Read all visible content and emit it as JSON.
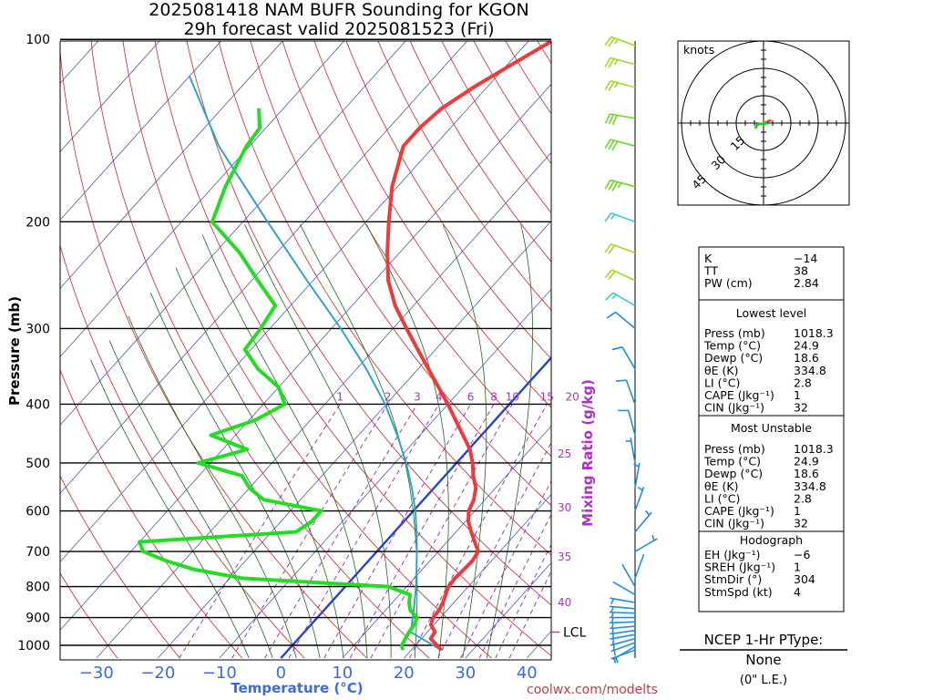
{
  "header": {
    "line1": "2025081418 NAM BUFR Sounding for KGON",
    "line2": "29h forecast valid 2025081523 (Fri)"
  },
  "axes": {
    "ylabel": "Pressure (mb)",
    "xlabel": "Temperature (°C)",
    "mixing_ratio_label": "Mixing Ratio (g/kg)",
    "pressure_ticks": [
      "100",
      "200",
      "300",
      "400",
      "500",
      "600",
      "700",
      "800",
      "900",
      "1000"
    ],
    "temp_ticks": [
      "−30",
      "−20",
      "−10",
      "0",
      "10",
      "20",
      "30",
      "40"
    ],
    "mixing_ratio_top": [
      "1",
      "2",
      "3",
      "4",
      "6",
      "8",
      "10",
      "15",
      "20"
    ],
    "mixing_ratio_side": [
      "25",
      "30",
      "35",
      "40"
    ],
    "lcl_label": "LCL"
  },
  "colors": {
    "temperature": "#f03a3a",
    "dewpoint": "#22dd22",
    "parcel": "#2aa6c8",
    "isotherm": "#2a36c8",
    "dry_adiabat": "#e02020",
    "moist_adiabat": "#1a6a1a",
    "mixing_ratio": "#a020c0",
    "freezing_isotherm": "#2244dd"
  },
  "chart_data": {
    "type": "skew-t",
    "title": "2025081418 NAM BUFR Sounding for KGON",
    "subtitle": "29h forecast valid 2025081523 (Fri)",
    "xlabel": "Temperature (°C)",
    "ylabel": "Pressure (mb)",
    "xlim": [
      -40,
      42
    ],
    "ylim": [
      1050,
      100
    ],
    "temperature": [
      {
        "p": 1018,
        "t": 24.9
      },
      {
        "p": 1000,
        "t": 23.5
      },
      {
        "p": 975,
        "t": 21.5
      },
      {
        "p": 950,
        "t": 21.2
      },
      {
        "p": 925,
        "t": 19.5
      },
      {
        "p": 900,
        "t": 18.8
      },
      {
        "p": 875,
        "t": 18.7
      },
      {
        "p": 850,
        "t": 18.2
      },
      {
        "p": 825,
        "t": 17.5
      },
      {
        "p": 800,
        "t": 16.8
      },
      {
        "p": 775,
        "t": 16.6
      },
      {
        "p": 750,
        "t": 16.8
      },
      {
        "p": 725,
        "t": 16.9
      },
      {
        "p": 700,
        "t": 16.5
      },
      {
        "p": 675,
        "t": 14.5
      },
      {
        "p": 650,
        "t": 12.5
      },
      {
        "p": 625,
        "t": 10.5
      },
      {
        "p": 600,
        "t": 9.0
      },
      {
        "p": 575,
        "t": 8.2
      },
      {
        "p": 550,
        "t": 6.8
      },
      {
        "p": 525,
        "t": 4.6
      },
      {
        "p": 500,
        "t": 2.6
      },
      {
        "p": 475,
        "t": 0.2
      },
      {
        "p": 450,
        "t": -3.0
      },
      {
        "p": 425,
        "t": -6.4
      },
      {
        "p": 400,
        "t": -10.0
      },
      {
        "p": 375,
        "t": -14.0
      },
      {
        "p": 350,
        "t": -18.3
      },
      {
        "p": 325,
        "t": -22.9
      },
      {
        "p": 300,
        "t": -27.8
      },
      {
        "p": 275,
        "t": -33.0
      },
      {
        "p": 250,
        "t": -37.8
      },
      {
        "p": 225,
        "t": -42.0
      },
      {
        "p": 200,
        "t": -46.3
      },
      {
        "p": 175,
        "t": -50.9
      },
      {
        "p": 150,
        "t": -55.0
      },
      {
        "p": 140,
        "t": -55.0
      },
      {
        "p": 130,
        "t": -54.3
      },
      {
        "p": 120,
        "t": -52.2
      },
      {
        "p": 110,
        "t": -49.3
      },
      {
        "p": 100,
        "t": -46.0
      }
    ],
    "dewpoint": [
      {
        "p": 1018,
        "t": 18.6
      },
      {
        "p": 1000,
        "t": 17.8
      },
      {
        "p": 975,
        "t": 17.4
      },
      {
        "p": 950,
        "t": 17.0
      },
      {
        "p": 925,
        "t": 16.8
      },
      {
        "p": 900,
        "t": 16.2
      },
      {
        "p": 875,
        "t": 14.0
      },
      {
        "p": 850,
        "t": 12.7
      },
      {
        "p": 825,
        "t": 11.7
      },
      {
        "p": 800,
        "t": 7.0
      },
      {
        "p": 775,
        "t": -18.0
      },
      {
        "p": 750,
        "t": -27.0
      },
      {
        "p": 725,
        "t": -33.0
      },
      {
        "p": 700,
        "t": -38.0
      },
      {
        "p": 675,
        "t": -40.0
      },
      {
        "p": 650,
        "t": -16.0
      },
      {
        "p": 625,
        "t": -15.0
      },
      {
        "p": 600,
        "t": -15.0
      },
      {
        "p": 575,
        "t": -26.0
      },
      {
        "p": 550,
        "t": -30.0
      },
      {
        "p": 525,
        "t": -33.0
      },
      {
        "p": 500,
        "t": -42.0
      },
      {
        "p": 475,
        "t": -36.0
      },
      {
        "p": 450,
        "t": -44.0
      },
      {
        "p": 425,
        "t": -39.0
      },
      {
        "p": 400,
        "t": -36.5
      },
      {
        "p": 375,
        "t": -40.0
      },
      {
        "p": 350,
        "t": -46.0
      },
      {
        "p": 325,
        "t": -51.0
      },
      {
        "p": 300,
        "t": -51.5
      },
      {
        "p": 275,
        "t": -52.5
      },
      {
        "p": 250,
        "t": -59.0
      },
      {
        "p": 225,
        "t": -66.0
      },
      {
        "p": 200,
        "t": -75.0
      },
      {
        "p": 175,
        "t": -78.0
      },
      {
        "p": 150,
        "t": -80.5
      },
      {
        "p": 140,
        "t": -81.0
      },
      {
        "p": 130,
        "t": -84.0
      }
    ],
    "parcel": [
      {
        "p": 1018,
        "t": 24.9
      },
      {
        "p": 951,
        "t": 17.3
      },
      {
        "p": 900,
        "t": 15.5
      },
      {
        "p": 850,
        "t": 13.6
      },
      {
        "p": 800,
        "t": 11.5
      },
      {
        "p": 750,
        "t": 9.1
      },
      {
        "p": 700,
        "t": 6.5
      },
      {
        "p": 650,
        "t": 3.6
      },
      {
        "p": 600,
        "t": 0.3
      },
      {
        "p": 550,
        "t": -3.6
      },
      {
        "p": 500,
        "t": -8.2
      },
      {
        "p": 450,
        "t": -13.7
      },
      {
        "p": 400,
        "t": -20.2
      },
      {
        "p": 350,
        "t": -28.4
      },
      {
        "p": 300,
        "t": -38.5
      },
      {
        "p": 250,
        "t": -51.0
      },
      {
        "p": 200,
        "t": -66.0
      },
      {
        "p": 150,
        "t": -85.0
      },
      {
        "p": 115,
        "t": -100.0
      }
    ],
    "lcl_pressure": 951,
    "wind_barbs": [
      {
        "p": 1018,
        "dir": 250,
        "spd": 5
      },
      {
        "p": 1005,
        "dir": 240,
        "spd": 5
      },
      {
        "p": 990,
        "dir": 250,
        "spd": 6
      },
      {
        "p": 975,
        "dir": 255,
        "spd": 7
      },
      {
        "p": 960,
        "dir": 260,
        "spd": 7
      },
      {
        "p": 945,
        "dir": 262,
        "spd": 6
      },
      {
        "p": 930,
        "dir": 265,
        "spd": 5
      },
      {
        "p": 915,
        "dir": 268,
        "spd": 5
      },
      {
        "p": 900,
        "dir": 270,
        "spd": 4
      },
      {
        "p": 885,
        "dir": 272,
        "spd": 4
      },
      {
        "p": 870,
        "dir": 275,
        "spd": 4
      },
      {
        "p": 850,
        "dir": 280,
        "spd": 3
      },
      {
        "p": 825,
        "dir": 300,
        "spd": 2
      },
      {
        "p": 800,
        "dir": 330,
        "spd": 1
      },
      {
        "p": 775,
        "dir": 20,
        "spd": 1
      },
      {
        "p": 700,
        "dir": 60,
        "spd": 5
      },
      {
        "p": 650,
        "dir": 40,
        "spd": 5
      },
      {
        "p": 600,
        "dir": 20,
        "spd": 5
      },
      {
        "p": 550,
        "dir": 10,
        "spd": 5
      },
      {
        "p": 500,
        "dir": 350,
        "spd": 5
      },
      {
        "p": 450,
        "dir": 345,
        "spd": 10
      },
      {
        "p": 400,
        "dir": 340,
        "spd": 10
      },
      {
        "p": 350,
        "dir": 330,
        "spd": 10
      },
      {
        "p": 300,
        "dir": 310,
        "spd": 10
      },
      {
        "p": 275,
        "dir": 300,
        "spd": 15
      },
      {
        "p": 250,
        "dir": 295,
        "spd": 20
      },
      {
        "p": 225,
        "dir": 290,
        "spd": 20
      },
      {
        "p": 200,
        "dir": 290,
        "spd": 15
      },
      {
        "p": 175,
        "dir": 285,
        "spd": 35
      },
      {
        "p": 150,
        "dir": 285,
        "spd": 30
      },
      {
        "p": 135,
        "dir": 280,
        "spd": 30
      },
      {
        "p": 120,
        "dir": 285,
        "spd": 25
      },
      {
        "p": 110,
        "dir": 285,
        "spd": 25
      },
      {
        "p": 100,
        "dir": 290,
        "spd": 25
      }
    ]
  },
  "hodograph": {
    "units_label": "knots",
    "rings": [
      "15",
      "30",
      "45"
    ],
    "points": [
      {
        "u": -0.5,
        "v": 0.6
      },
      {
        "u": 0.8,
        "v": 0.3
      },
      {
        "u": 1.2,
        "v": -0.2
      },
      {
        "u": -0.4,
        "v": -0.4
      },
      {
        "u": -2.4,
        "v": -0.5
      },
      {
        "u": -3.6,
        "v": -1.0
      },
      {
        "u": -4.2,
        "v": -2.5
      },
      {
        "u": -4.0,
        "v": -3.0
      }
    ],
    "low_points": [
      {
        "u": 4.2,
        "v": 1.5
      },
      {
        "u": 3.0,
        "v": 1.2
      },
      {
        "u": 1.8,
        "v": 0.6
      },
      {
        "u": 0.8,
        "v": 0.4
      }
    ]
  },
  "indices": {
    "top": [
      {
        "label": "K",
        "value": "−14"
      },
      {
        "label": "TT",
        "value": "38"
      },
      {
        "label": "PW (cm)",
        "value": "2.84"
      }
    ],
    "lowest_level": {
      "title": "Lowest level",
      "rows": [
        {
          "label": "Press (mb)",
          "value": "1018.3"
        },
        {
          "label": "Temp (°C)",
          "value": "24.9"
        },
        {
          "label": "Dewp (°C)",
          "value": "18.6"
        },
        {
          "label": "θE (K)",
          "value": "334.8"
        },
        {
          "label": "LI (°C)",
          "value": "2.8"
        },
        {
          "label": "CAPE (Jkg⁻¹)",
          "value": "1"
        },
        {
          "label": "CIN (Jkg⁻¹)",
          "value": "32"
        }
      ]
    },
    "most_unstable": {
      "title": "Most Unstable",
      "rows": [
        {
          "label": "Press (mb)",
          "value": "1018.3"
        },
        {
          "label": "Temp (°C)",
          "value": "24.9"
        },
        {
          "label": "Dewp (°C)",
          "value": "18.6"
        },
        {
          "label": "θE (K)",
          "value": "334.8"
        },
        {
          "label": "LI (°C)",
          "value": "2.8"
        },
        {
          "label": "CAPE (Jkg⁻¹)",
          "value": "1"
        },
        {
          "label": "CIN (Jkg⁻¹)",
          "value": "32"
        }
      ]
    },
    "hodograph_params": {
      "title": "Hodograph",
      "rows": [
        {
          "label": "EH (Jkg⁻¹)",
          "value": "−6"
        },
        {
          "label": "SREH (Jkg⁻¹)",
          "value": "1"
        },
        {
          "label": "StmDir (°)",
          "value": "304"
        },
        {
          "label": "StmSpd (kt)",
          "value": "4"
        }
      ]
    }
  },
  "ptype": {
    "title": "NCEP 1-Hr PType:",
    "value": "None",
    "note": "(0\" L.E.)"
  },
  "credit": "coolwx.com/modelts"
}
